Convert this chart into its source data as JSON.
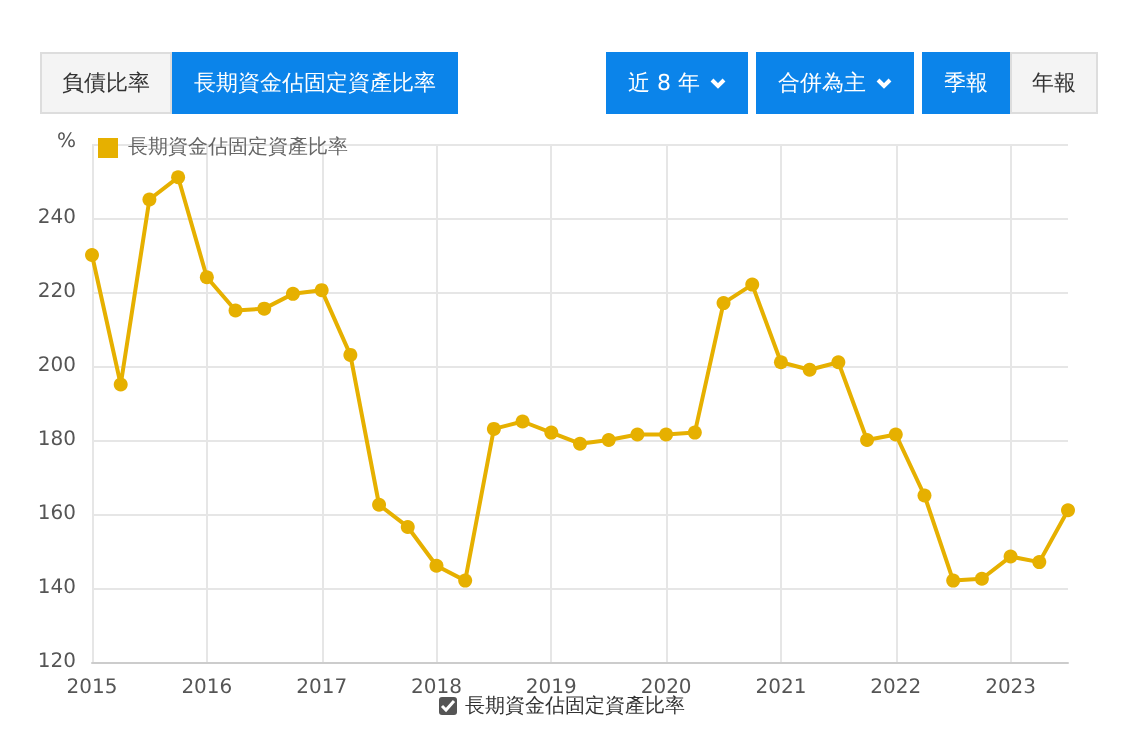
{
  "chart_data": {
    "type": "line",
    "ylabel": "%",
    "annotations": [
      "負債比率",
      "長期資金佔固定資產比率",
      "近 8 年",
      "合併為主",
      "季報",
      "年報"
    ],
    "x": [
      2015,
      2015.25,
      2015.5,
      2015.75,
      2016,
      2016.25,
      2016.5,
      2016.75,
      2017,
      2017.25,
      2017.5,
      2017.75,
      2018,
      2018.25,
      2018.5,
      2018.75,
      2019,
      2019.25,
      2019.5,
      2019.75,
      2020,
      2020.25,
      2020.5,
      2020.75,
      2021,
      2021.25,
      2021.5,
      2021.75,
      2022,
      2022.25,
      2022.5,
      2022.75,
      2023,
      2023.25,
      2023.5
    ],
    "series": [
      {
        "name": "長期資金佔固定資產比率",
        "color": "#e6b000",
        "values": [
          230,
          195,
          245,
          251,
          224,
          215,
          215.5,
          219.5,
          220.5,
          203,
          162.5,
          156.5,
          146,
          142,
          183,
          185,
          182,
          179,
          180,
          181.5,
          181.5,
          182,
          217,
          222,
          201,
          199,
          201,
          180,
          181.5,
          165,
          142,
          142.5,
          148.5,
          147,
          161
        ]
      }
    ],
    "xlim": [
      2015,
      2023.5
    ],
    "xticks": [
      2015,
      2016,
      2017,
      2018,
      2019,
      2020,
      2021,
      2022,
      2023
    ],
    "ylim": [
      120,
      260
    ],
    "yticks": [
      120,
      140,
      160,
      180,
      200,
      220,
      240,
      {
        "value": 260,
        "label": null
      }
    ],
    "grid": true,
    "legend": "top left",
    "marker": "circle",
    "line_style": "solid"
  }
}
